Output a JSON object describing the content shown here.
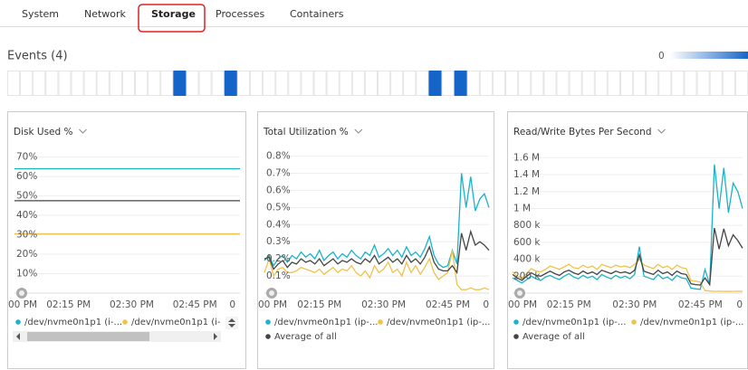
{
  "tabs": [
    "System",
    "Network",
    "Storage",
    "Processes",
    "Containers"
  ],
  "active_tab": 2,
  "events": {
    "title": "Events (4)",
    "scale_label": "0",
    "color": "#1565c8",
    "cells": [
      0,
      0,
      0,
      0,
      0,
      0,
      0,
      0,
      0,
      0,
      0,
      0,
      0,
      1,
      0,
      0,
      0,
      1,
      0,
      0,
      0,
      0,
      0,
      0,
      0,
      0,
      0,
      0,
      0,
      0,
      0,
      0,
      0,
      1,
      0,
      1,
      0,
      0,
      0,
      0,
      0,
      0,
      0,
      0,
      0,
      0,
      0,
      0,
      0,
      0,
      0,
      0,
      0,
      0,
      0,
      0,
      0,
      0
    ]
  },
  "chart_data": [
    {
      "type": "line",
      "title": "Disk Used %",
      "xlim": [
        0,
        10
      ],
      "xticks": [
        {
          "value": 0,
          "label": "00 PM"
        },
        {
          "value": 2.4,
          "label": "02:15 PM"
        },
        {
          "value": 5.2,
          "label": "02:30 PM"
        },
        {
          "value": 8,
          "label": "02:45 PM"
        },
        {
          "value": 9.8,
          "label": "0"
        }
      ],
      "ylim": [
        0,
        74
      ],
      "yticks": [
        {
          "value": 10,
          "label": "10%"
        },
        {
          "value": 20,
          "label": "20%"
        },
        {
          "value": 30,
          "label": "30%"
        },
        {
          "value": 40,
          "label": "40%"
        },
        {
          "value": 50,
          "label": "50%"
        },
        {
          "value": 60,
          "label": "60%"
        },
        {
          "value": 70,
          "label": "70%"
        }
      ],
      "grid": true,
      "series": [
        {
          "name": "/dev/nvme0n1p1 (i-...",
          "color": "#1ab3c9",
          "values": [
            64,
            64,
            64,
            64,
            64,
            64,
            64,
            64,
            64,
            64,
            64
          ]
        },
        {
          "name": "/dev/nvme0n1p1 (i-",
          "color": "#f0c24a",
          "values": [
            30.5,
            30.5,
            30.5,
            30.5,
            30.5,
            30.5,
            30.5,
            30.5,
            30.5,
            30.5,
            30.5
          ]
        },
        {
          "color": "#444444",
          "values": [
            47.5,
            47.5,
            47.5,
            47.5,
            47.5,
            47.5,
            47.5,
            47.5,
            47.5,
            47.5,
            47.5
          ]
        }
      ]
    },
    {
      "type": "line",
      "title": "Total Utilization %",
      "xlim": [
        0,
        49
      ],
      "xticks": [
        {
          "value": 0,
          "label": "00 PM"
        },
        {
          "value": 12,
          "label": "02:15 PM"
        },
        {
          "value": 26,
          "label": "02:30 PM"
        },
        {
          "value": 40,
          "label": "02:45 PM"
        },
        {
          "value": 49,
          "label": "0"
        }
      ],
      "ylim": [
        0,
        0.84
      ],
      "yticks": [
        {
          "value": 0.1,
          "label": "0.1%"
        },
        {
          "value": 0.2,
          "label": "0.2%"
        },
        {
          "value": 0.3,
          "label": "0.3%"
        },
        {
          "value": 0.4,
          "label": "0.4%"
        },
        {
          "value": 0.5,
          "label": "0.5%"
        },
        {
          "value": 0.6,
          "label": "0.6%"
        },
        {
          "value": 0.7,
          "label": "0.7%"
        },
        {
          "value": 0.8,
          "label": "0.8%"
        }
      ],
      "grid": true,
      "series": [
        {
          "name": "/dev/nvme0n1p1 (ip-...",
          "color": "#1ab3c9",
          "values": [
            0.19,
            0.22,
            0.16,
            0.2,
            0.22,
            0.18,
            0.22,
            0.2,
            0.24,
            0.21,
            0.23,
            0.2,
            0.25,
            0.19,
            0.22,
            0.24,
            0.2,
            0.23,
            0.21,
            0.25,
            0.22,
            0.2,
            0.24,
            0.22,
            0.28,
            0.21,
            0.23,
            0.26,
            0.22,
            0.25,
            0.21,
            0.27,
            0.22,
            0.24,
            0.21,
            0.26,
            0.33,
            0.22,
            0.17,
            0.15,
            0.16,
            0.25,
            0.17,
            0.7,
            0.5,
            0.68,
            0.48,
            0.55,
            0.58,
            0.5
          ]
        },
        {
          "name": "/dev/nvme0n1p1 (ip-...",
          "color": "#f0c24a",
          "values": [
            0.12,
            0.2,
            0.1,
            0.14,
            0.15,
            0.12,
            0.12,
            0.13,
            0.15,
            0.14,
            0.13,
            0.12,
            0.14,
            0.11,
            0.13,
            0.15,
            0.12,
            0.14,
            0.13,
            0.16,
            0.12,
            0.1,
            0.13,
            0.09,
            0.16,
            0.12,
            0.14,
            0.18,
            0.12,
            0.14,
            0.1,
            0.18,
            0.12,
            0.16,
            0.11,
            0.15,
            0.2,
            0.12,
            0.08,
            0.1,
            0.12,
            0.25,
            0.05,
            0.02,
            0.02,
            0.03,
            0.02,
            0.02,
            0.03,
            0.02
          ]
        },
        {
          "name": "Average of all",
          "color": "#444444",
          "values": [
            0.2,
            0.21,
            0.14,
            0.17,
            0.19,
            0.15,
            0.18,
            0.17,
            0.2,
            0.18,
            0.19,
            0.17,
            0.2,
            0.16,
            0.18,
            0.2,
            0.17,
            0.19,
            0.18,
            0.2,
            0.18,
            0.17,
            0.2,
            0.18,
            0.22,
            0.17,
            0.19,
            0.21,
            0.18,
            0.2,
            0.17,
            0.22,
            0.18,
            0.2,
            0.17,
            0.21,
            0.27,
            0.18,
            0.14,
            0.13,
            0.13,
            0.16,
            0.12,
            0.35,
            0.25,
            0.36,
            0.28,
            0.3,
            0.28,
            0.25
          ]
        }
      ]
    },
    {
      "type": "line",
      "title": "Read/Write Bytes Per Second",
      "xlim": [
        0,
        49
      ],
      "xticks": [
        {
          "value": 0,
          "label": "00 PM"
        },
        {
          "value": 12,
          "label": "02:15 PM"
        },
        {
          "value": 26,
          "label": "02:30 PM"
        },
        {
          "value": 40,
          "label": "02:45 PM"
        },
        {
          "value": 49,
          "label": "0"
        }
      ],
      "ylim": [
        0,
        1700000
      ],
      "yticks": [
        {
          "value": 200000,
          "label": "200 k"
        },
        {
          "value": 400000,
          "label": "400 k"
        },
        {
          "value": 600000,
          "label": "600 k"
        },
        {
          "value": 800000,
          "label": "800 k"
        },
        {
          "value": 1000000,
          "label": "1 M"
        },
        {
          "value": 1200000,
          "label": "1.2 M"
        },
        {
          "value": 1400000,
          "label": "1.4 M"
        },
        {
          "value": 1600000,
          "label": "1.6 M"
        }
      ],
      "grid": true,
      "series": [
        {
          "name": "/dev/nvme0n1p1 (ip-...",
          "color": "#1ab3c9",
          "values": [
            180000,
            150000,
            120000,
            160000,
            200000,
            170000,
            150000,
            190000,
            210000,
            180000,
            160000,
            200000,
            230000,
            190000,
            170000,
            210000,
            180000,
            200000,
            160000,
            220000,
            190000,
            170000,
            210000,
            180000,
            200000,
            170000,
            220000,
            550000,
            200000,
            180000,
            160000,
            220000,
            170000,
            190000,
            150000,
            210000,
            180000,
            170000,
            60000,
            50000,
            45000,
            280000,
            100000,
            1520000,
            1000000,
            1480000,
            950000,
            1300000,
            1200000,
            1000000
          ]
        },
        {
          "name": "/dev/nvme0n1p1 (ip-...",
          "color": "#f0c24a",
          "values": [
            250000,
            200000,
            180000,
            230000,
            290000,
            260000,
            250000,
            280000,
            320000,
            300000,
            280000,
            310000,
            340000,
            300000,
            290000,
            330000,
            300000,
            320000,
            280000,
            340000,
            320000,
            300000,
            330000,
            310000,
            320000,
            300000,
            340000,
            400000,
            330000,
            310000,
            290000,
            340000,
            300000,
            320000,
            280000,
            330000,
            300000,
            290000,
            150000,
            140000,
            130000,
            30000,
            25000,
            20000,
            22000,
            20000,
            21000,
            20000,
            22000,
            20000
          ]
        },
        {
          "name": "Average of all",
          "color": "#444444",
          "values": [
            220000,
            180000,
            150000,
            200000,
            240000,
            210000,
            200000,
            230000,
            260000,
            230000,
            210000,
            250000,
            270000,
            240000,
            220000,
            260000,
            230000,
            250000,
            220000,
            270000,
            250000,
            230000,
            260000,
            240000,
            250000,
            230000,
            270000,
            450000,
            260000,
            240000,
            220000,
            270000,
            230000,
            250000,
            210000,
            260000,
            230000,
            220000,
            110000,
            100000,
            95000,
            180000,
            100000,
            770000,
            520000,
            760000,
            560000,
            690000,
            620000,
            530000
          ]
        }
      ]
    }
  ]
}
